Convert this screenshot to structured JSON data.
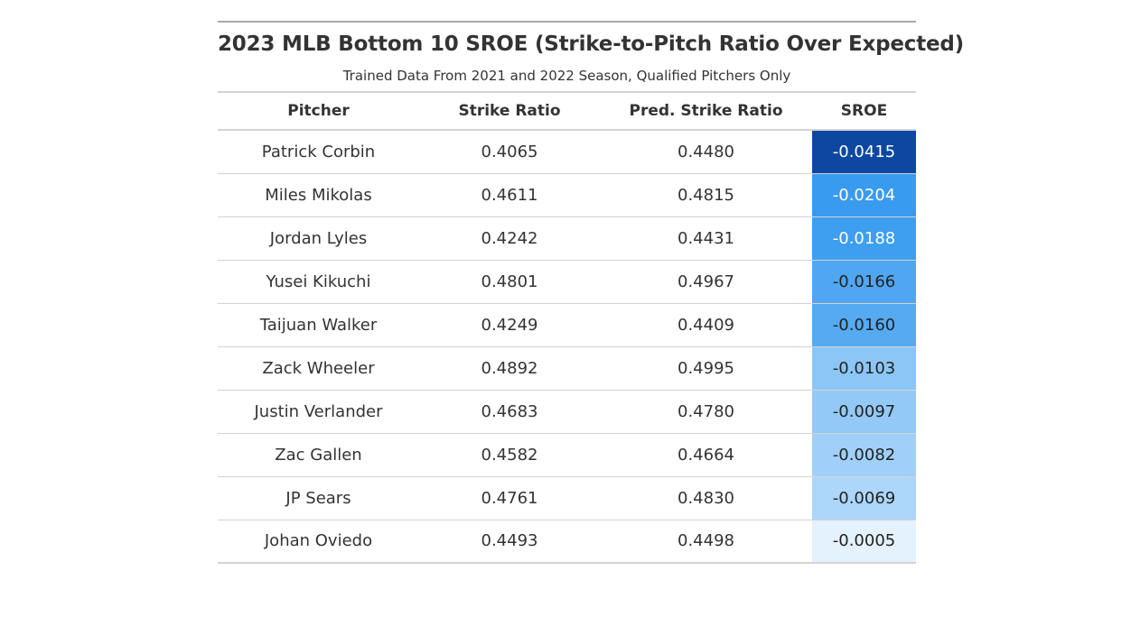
{
  "chart_data": {
    "type": "table",
    "title": "2023 MLB Bottom 10 SROE (Strike-to-Pitch Ratio Over Expected)",
    "subtitle": "Trained Data From 2021 and 2022 Season, Qualified Pitchers Only",
    "columns": [
      "Pitcher",
      "Strike Ratio",
      "Pred. Strike Ratio",
      "SROE"
    ],
    "rows": [
      {
        "pitcher": "Patrick Corbin",
        "strike_ratio": "0.4065",
        "pred_strike_ratio": "0.4480",
        "sroe": "-0.0415",
        "bg": "#0d47a1",
        "fg": "#ffffff"
      },
      {
        "pitcher": "Miles Mikolas",
        "strike_ratio": "0.4611",
        "pred_strike_ratio": "0.4815",
        "sroe": "-0.0204",
        "bg": "#399bef",
        "fg": "#ffffff"
      },
      {
        "pitcher": "Jordan Lyles",
        "strike_ratio": "0.4242",
        "pred_strike_ratio": "0.4431",
        "sroe": "-0.0188",
        "bg": "#3e9ef0",
        "fg": "#ffffff"
      },
      {
        "pitcher": "Yusei Kikuchi",
        "strike_ratio": "0.4801",
        "pred_strike_ratio": "0.4967",
        "sroe": "-0.0166",
        "bg": "#4fa6f2",
        "fg": "#222222"
      },
      {
        "pitcher": "Taijuan Walker",
        "strike_ratio": "0.4249",
        "pred_strike_ratio": "0.4409",
        "sroe": "-0.0160",
        "bg": "#55aaf2",
        "fg": "#222222"
      },
      {
        "pitcher": "Zack Wheeler",
        "strike_ratio": "0.4892",
        "pred_strike_ratio": "0.4995",
        "sroe": "-0.0103",
        "bg": "#8cc6f7",
        "fg": "#222222"
      },
      {
        "pitcher": "Justin Verlander",
        "strike_ratio": "0.4683",
        "pred_strike_ratio": "0.4780",
        "sroe": "-0.0097",
        "bg": "#92c9f7",
        "fg": "#222222"
      },
      {
        "pitcher": "Zac Gallen",
        "strike_ratio": "0.4582",
        "pred_strike_ratio": "0.4664",
        "sroe": "-0.0082",
        "bg": "#a0d0f9",
        "fg": "#222222"
      },
      {
        "pitcher": "JP Sears",
        "strike_ratio": "0.4761",
        "pred_strike_ratio": "0.4830",
        "sroe": "-0.0069",
        "bg": "#acd6fa",
        "fg": "#222222"
      },
      {
        "pitcher": "Johan Oviedo",
        "strike_ratio": "0.4493",
        "pred_strike_ratio": "0.4498",
        "sroe": "-0.0005",
        "bg": "#e3f2fd",
        "fg": "#222222"
      }
    ]
  }
}
